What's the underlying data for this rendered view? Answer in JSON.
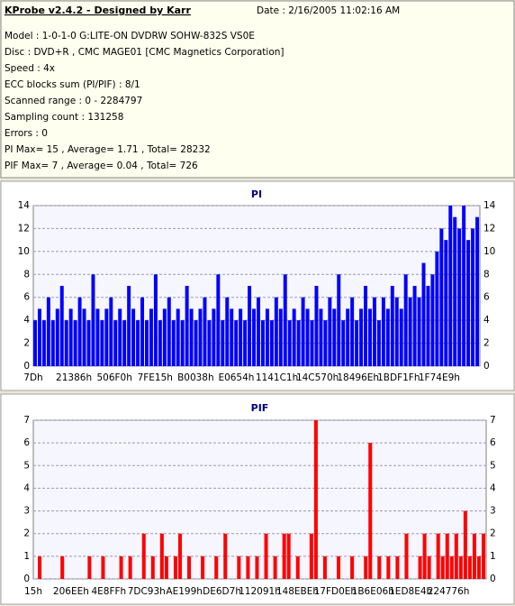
{
  "header": {
    "title": "KProbe v2.4.2 - Designed by Karr",
    "date": "Date : 2/16/2005 11:02:16 AM",
    "lines": [
      "Model : 1-0-1-0 G:LITE-ON DVDRW SOHW-832S  VS0E",
      "Disc : DVD+R , CMC MAGE01 [CMC Magnetics Corporation]",
      "Speed : 4x",
      "ECC blocks sum (PI/PIF) : 8/1",
      "Scanned range : 0 - 2284797",
      "Sampling count : 131258",
      "Errors : 0",
      "PI Max= 15 , Average= 1.71 , Total= 28232",
      "PIF Max= 7 , Average= 0.04 , Total= 726"
    ]
  },
  "chart_data": [
    {
      "type": "bar",
      "title": "PI",
      "color": "#0000ff",
      "grid": true,
      "x_tick_labels": [
        "7Dh",
        "21386h",
        "506F0h",
        "7FE15h",
        "B0038h",
        "E0654h",
        "1141C1h",
        "14C570h",
        "18496Eh",
        "1BDF1Fh",
        "1F74E9h"
      ],
      "ylim": [
        0,
        14
      ],
      "yticks": [
        0,
        2,
        4,
        6,
        8,
        10,
        12,
        14
      ],
      "values": [
        4,
        5,
        4,
        6,
        4,
        5,
        7,
        4,
        5,
        4,
        6,
        5,
        4,
        8,
        5,
        4,
        5,
        6,
        4,
        5,
        4,
        7,
        5,
        4,
        6,
        4,
        5,
        8,
        4,
        5,
        6,
        4,
        5,
        4,
        7,
        5,
        4,
        5,
        6,
        4,
        5,
        8,
        4,
        6,
        5,
        4,
        5,
        4,
        7,
        5,
        6,
        4,
        5,
        4,
        6,
        5,
        8,
        4,
        5,
        4,
        6,
        5,
        4,
        7,
        5,
        4,
        6,
        5,
        8,
        4,
        5,
        6,
        4,
        5,
        7,
        5,
        6,
        4,
        6,
        5,
        7,
        6,
        5,
        8,
        6,
        7,
        6,
        9,
        7,
        8,
        10,
        12,
        11,
        14,
        13,
        12,
        14,
        11,
        12,
        13
      ]
    },
    {
      "type": "bar",
      "title": "PIF",
      "color": "#ff0000",
      "grid": true,
      "x_tick_labels": [
        "15h",
        "206EEh",
        "4E8FFh",
        "7DC93h",
        "AE199h",
        "DE6D7h",
        "112091h",
        "148EBEh",
        "17FD0Eh",
        "1B6E06h",
        "1ED8E4h",
        "224776h"
      ],
      "ylim": [
        0,
        7
      ],
      "yticks": [
        0,
        1,
        2,
        3,
        4,
        5,
        6,
        7
      ],
      "values": [
        0,
        1,
        0,
        0,
        0,
        0,
        1,
        0,
        0,
        0,
        0,
        0,
        1,
        0,
        0,
        1,
        0,
        0,
        0,
        1,
        0,
        1,
        0,
        0,
        2,
        0,
        1,
        0,
        2,
        1,
        0,
        1,
        2,
        0,
        1,
        0,
        0,
        1,
        0,
        0,
        1,
        0,
        2,
        0,
        0,
        1,
        0,
        1,
        0,
        1,
        0,
        2,
        0,
        1,
        0,
        2,
        2,
        0,
        1,
        0,
        0,
        2,
        7,
        0,
        1,
        0,
        0,
        1,
        0,
        0,
        1,
        0,
        0,
        1,
        6,
        0,
        1,
        0,
        1,
        0,
        1,
        0,
        2,
        0,
        0,
        1,
        2,
        1,
        0,
        2,
        1,
        2,
        1,
        2,
        1,
        3,
        1,
        2,
        1,
        2
      ]
    }
  ]
}
